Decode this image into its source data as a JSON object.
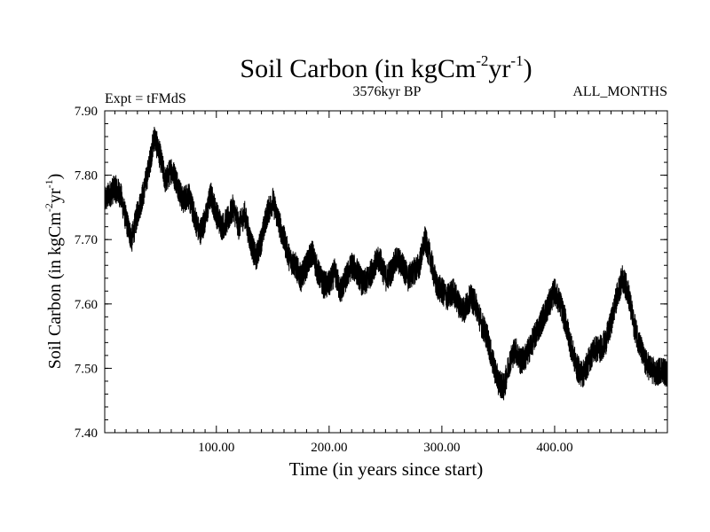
{
  "chart_data": {
    "type": "line",
    "title": {
      "main": "Soil Carbon (in kgCm",
      "sup1": "-2",
      "mid": "yr",
      "sup2": "-1",
      "end": ")"
    },
    "subtitle_left": "Expt = tFMdS",
    "subtitle_center": "3576kyr BP",
    "subtitle_right": "ALL_MONTHS",
    "xlabel": "Time (in years since start)",
    "ylabel": {
      "main": "Soil Carbon (in kgCm",
      "sup1": "-2",
      "mid": "yr",
      "sup2": "-1",
      "end": ")"
    },
    "xlim": [
      1,
      500
    ],
    "ylim": [
      7.4,
      7.9
    ],
    "xticks": [
      100,
      200,
      300,
      400
    ],
    "xtick_labels": [
      "100.00",
      "200.00",
      "300.00",
      "400.00"
    ],
    "yticks": [
      7.4,
      7.5,
      7.6,
      7.7,
      7.8,
      7.9
    ],
    "ytick_labels": [
      "7.40",
      "7.50",
      "7.60",
      "7.70",
      "7.80",
      "7.90"
    ],
    "grid": false,
    "series": [
      {
        "name": "Soil Carbon",
        "color": "#000000",
        "noise_amplitude": 0.022,
        "x": [
          1,
          5,
          10,
          15,
          20,
          25,
          30,
          35,
          40,
          45,
          50,
          55,
          60,
          65,
          70,
          75,
          80,
          85,
          90,
          95,
          100,
          105,
          110,
          115,
          120,
          125,
          130,
          135,
          140,
          145,
          150,
          155,
          160,
          165,
          170,
          175,
          180,
          185,
          190,
          195,
          200,
          205,
          210,
          215,
          220,
          225,
          230,
          235,
          240,
          245,
          250,
          255,
          260,
          265,
          270,
          275,
          280,
          285,
          290,
          295,
          300,
          305,
          310,
          315,
          320,
          325,
          330,
          335,
          340,
          345,
          350,
          355,
          360,
          365,
          370,
          375,
          380,
          385,
          390,
          395,
          400,
          405,
          410,
          415,
          420,
          425,
          430,
          435,
          440,
          445,
          450,
          455,
          460,
          465,
          470,
          475,
          480,
          485,
          490,
          495,
          500
        ],
        "y": [
          7.76,
          7.77,
          7.78,
          7.77,
          7.73,
          7.7,
          7.74,
          7.77,
          7.81,
          7.86,
          7.83,
          7.79,
          7.81,
          7.79,
          7.76,
          7.77,
          7.74,
          7.71,
          7.73,
          7.77,
          7.74,
          7.72,
          7.73,
          7.75,
          7.72,
          7.74,
          7.7,
          7.67,
          7.7,
          7.74,
          7.76,
          7.73,
          7.7,
          7.67,
          7.66,
          7.64,
          7.66,
          7.68,
          7.65,
          7.63,
          7.63,
          7.65,
          7.62,
          7.64,
          7.66,
          7.65,
          7.63,
          7.64,
          7.66,
          7.67,
          7.64,
          7.65,
          7.67,
          7.66,
          7.64,
          7.65,
          7.66,
          7.7,
          7.67,
          7.63,
          7.62,
          7.61,
          7.62,
          7.6,
          7.59,
          7.61,
          7.6,
          7.57,
          7.55,
          7.51,
          7.48,
          7.47,
          7.51,
          7.53,
          7.51,
          7.52,
          7.54,
          7.56,
          7.58,
          7.6,
          7.62,
          7.6,
          7.57,
          7.53,
          7.5,
          7.49,
          7.51,
          7.53,
          7.53,
          7.54,
          7.57,
          7.61,
          7.64,
          7.62,
          7.57,
          7.54,
          7.51,
          7.5,
          7.49,
          7.5,
          7.49
        ]
      }
    ]
  }
}
